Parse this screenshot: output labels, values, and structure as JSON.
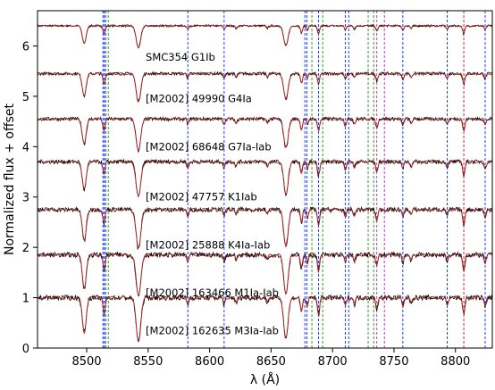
{
  "chart_data": {
    "type": "line",
    "title": "",
    "xlabel": "λ (Å)",
    "ylabel": "Normalized flux + offset",
    "xlim": [
      8460,
      8830
    ],
    "ylim": [
      0,
      6.7
    ],
    "xticks": [
      8500,
      8550,
      8600,
      8650,
      8700,
      8750,
      8800
    ],
    "yticks": [
      0,
      1,
      2,
      3,
      4,
      5,
      6
    ],
    "grid": false,
    "legend": "none",
    "colors": {
      "observed": "#000000",
      "model": "#b22222",
      "line_blue": "#1f3fff",
      "line_green": "#2ca02c",
      "line_magenta": "#c040c0",
      "line_red": "#d62728"
    },
    "absorption_lines": [
      {
        "wavelength": 8498.0,
        "depth": 0.62,
        "width": 1.6
      },
      {
        "wavelength": 8542.1,
        "depth": 0.78,
        "width": 1.9
      },
      {
        "wavelength": 8662.1,
        "depth": 0.72,
        "width": 1.8
      },
      {
        "wavelength": 8514.1,
        "depth": 0.28,
        "width": 0.9
      },
      {
        "wavelength": 8582.3,
        "depth": 0.12,
        "width": 0.8
      },
      {
        "wavelength": 8611.8,
        "depth": 0.12,
        "width": 0.8
      },
      {
        "wavelength": 8621.6,
        "depth": 0.1,
        "width": 0.8
      },
      {
        "wavelength": 8647.0,
        "depth": 0.09,
        "width": 0.8
      },
      {
        "wavelength": 8674.7,
        "depth": 0.25,
        "width": 0.9
      },
      {
        "wavelength": 8679.5,
        "depth": 0.15,
        "width": 0.8
      },
      {
        "wavelength": 8688.6,
        "depth": 0.3,
        "width": 0.9
      },
      {
        "wavelength": 8710.4,
        "depth": 0.15,
        "width": 0.8
      },
      {
        "wavelength": 8717.8,
        "depth": 0.12,
        "width": 0.8
      },
      {
        "wavelength": 8736.0,
        "depth": 0.2,
        "width": 0.9
      },
      {
        "wavelength": 8757.2,
        "depth": 0.15,
        "width": 0.8
      },
      {
        "wavelength": 8763.9,
        "depth": 0.1,
        "width": 0.8
      },
      {
        "wavelength": 8793.3,
        "depth": 0.12,
        "width": 0.8
      },
      {
        "wavelength": 8806.8,
        "depth": 0.3,
        "width": 0.9
      },
      {
        "wavelength": 8824.2,
        "depth": 0.15,
        "width": 0.8
      }
    ],
    "series": [
      {
        "name": "SMC354 G1Ib",
        "offset": 6.0,
        "continuum": 6.4,
        "label_y": 5.78,
        "strength": 0.55,
        "noise": 0.02
      },
      {
        "name": "[M2002] 49990 G4Ia",
        "offset": 5.0,
        "continuum": 5.45,
        "label_y": 4.95,
        "strength": 0.7,
        "noise": 0.03
      },
      {
        "name": "[M2002] 68648 G7Ia-Iab",
        "offset": 4.0,
        "continuum": 4.55,
        "label_y": 4.0,
        "strength": 0.8,
        "noise": 0.035
      },
      {
        "name": "[M2002] 47757 K1Iab",
        "offset": 3.0,
        "continuum": 3.7,
        "label_y": 3.0,
        "strength": 0.9,
        "noise": 0.04
      },
      {
        "name": "[M2002] 25888 K4Ia-Iab",
        "offset": 2.0,
        "continuum": 2.75,
        "label_y": 2.05,
        "strength": 1.0,
        "noise": 0.045
      },
      {
        "name": "[M2002] 163466 M1Ia-Iab",
        "offset": 1.0,
        "continuum": 1.85,
        "label_y": 1.1,
        "strength": 1.05,
        "noise": 0.05
      },
      {
        "name": "[M2002] 162635 M3Ia-Iab",
        "offset": 0.0,
        "continuum": 1.0,
        "label_y": 0.35,
        "strength": 1.1,
        "noise": 0.05
      }
    ],
    "vlines": [
      {
        "x": 8513.2,
        "color": "blue"
      },
      {
        "x": 8514.3,
        "color": "blue"
      },
      {
        "x": 8515.4,
        "color": "blue"
      },
      {
        "x": 8517.6,
        "color": "green"
      },
      {
        "x": 8582.3,
        "color": "blue"
      },
      {
        "x": 8611.8,
        "color": "blue"
      },
      {
        "x": 8677.5,
        "color": "blue"
      },
      {
        "x": 8679.2,
        "color": "blue"
      },
      {
        "x": 8683.2,
        "color": "green"
      },
      {
        "x": 8688.6,
        "color": "blue"
      },
      {
        "x": 8692.0,
        "color": "green"
      },
      {
        "x": 8710.4,
        "color": "blue"
      },
      {
        "x": 8713.2,
        "color": "blue"
      },
      {
        "x": 8729.0,
        "color": "green"
      },
      {
        "x": 8733.5,
        "color": "green"
      },
      {
        "x": 8736.0,
        "color": "magenta"
      },
      {
        "x": 8742.2,
        "color": "magenta"
      },
      {
        "x": 8757.2,
        "color": "blue"
      },
      {
        "x": 8793.3,
        "color": "blue"
      },
      {
        "x": 8806.8,
        "color": "red"
      },
      {
        "x": 8824.2,
        "color": "blue"
      }
    ]
  }
}
